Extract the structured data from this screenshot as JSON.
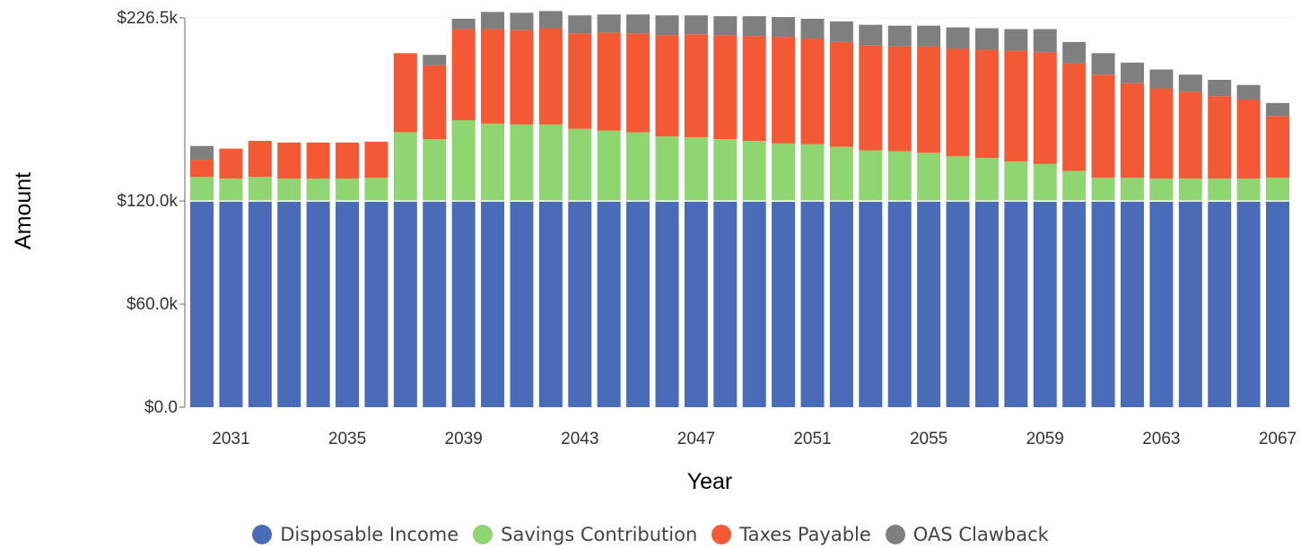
{
  "chart_data": {
    "type": "bar",
    "stacked": true,
    "xlabel": "Year",
    "ylabel": "Amount",
    "ylim": [
      0,
      226500
    ],
    "yticks": [
      0,
      60000,
      120000,
      226500
    ],
    "ytick_labels": [
      "$0.0",
      "$60.0k",
      "$120.0k",
      "$226.5k"
    ],
    "xtick_labels": [
      "2031",
      "2035",
      "2039",
      "2043",
      "2047",
      "2051",
      "2055",
      "2059",
      "2063",
      "2067"
    ],
    "categories": [
      "2030",
      "2031",
      "2032",
      "2033",
      "2034",
      "2035",
      "2036",
      "2037",
      "2038",
      "2039",
      "2040",
      "2041",
      "2042",
      "2043",
      "2044",
      "2045",
      "2046",
      "2047",
      "2048",
      "2049",
      "2050",
      "2051",
      "2052",
      "2053",
      "2054",
      "2055",
      "2056",
      "2057",
      "2058",
      "2059",
      "2060",
      "2061",
      "2062",
      "2063",
      "2064",
      "2065",
      "2066",
      "2067"
    ],
    "series": [
      {
        "name": "Disposable Income",
        "color": "#4a6bb8",
        "values": [
          120000,
          120000,
          120000,
          119500,
          120000,
          119500,
          119500,
          120000,
          120000,
          120000,
          120000,
          119500,
          120000,
          120000,
          120000,
          120000,
          119500,
          120000,
          120000,
          120000,
          119500,
          120000,
          120000,
          119500,
          120000,
          120000,
          120000,
          120000,
          120000,
          119500,
          120000,
          120000,
          120000,
          119500,
          120000,
          119500,
          120000,
          120000
        ]
      },
      {
        "name": "Savings Contribution",
        "color": "#8fd672",
        "values": [
          14000,
          13000,
          14000,
          13500,
          13000,
          13500,
          14000,
          40000,
          36000,
          47000,
          45000,
          45000,
          44500,
          42000,
          41000,
          40000,
          38000,
          37000,
          36000,
          35000,
          34000,
          33000,
          31500,
          30000,
          29000,
          28000,
          26000,
          25000,
          23000,
          22000,
          17500,
          13500,
          13500,
          13500,
          13000,
          13500,
          13000,
          13500
        ]
      },
      {
        "name": "Taxes Payable",
        "color": "#f25934",
        "values": [
          10000,
          17500,
          21000,
          21000,
          21000,
          21000,
          21000,
          46000,
          43000,
          53000,
          55000,
          55000,
          56000,
          55500,
          57000,
          57500,
          59000,
          60000,
          60500,
          61000,
          62000,
          61500,
          61000,
          61000,
          61000,
          62000,
          62500,
          63000,
          64500,
          65000,
          62500,
          60000,
          55000,
          52500,
          50500,
          48000,
          46000,
          36000
        ]
      },
      {
        "name": "OAS Clawback",
        "color": "#7f7f7f",
        "values": [
          8000,
          0,
          0,
          0,
          0,
          0,
          0,
          0,
          6000,
          6000,
          10000,
          10000,
          10000,
          10500,
          10500,
          11000,
          11500,
          11000,
          11000,
          11500,
          11500,
          11500,
          12000,
          12000,
          12000,
          12000,
          12500,
          12500,
          12500,
          13500,
          12500,
          12500,
          12000,
          11000,
          10000,
          9500,
          8500,
          7500
        ]
      }
    ]
  },
  "legend": {
    "items": [
      {
        "label": "Disposable Income",
        "color": "#4a6bb8"
      },
      {
        "label": "Savings Contribution",
        "color": "#8fd672"
      },
      {
        "label": "Taxes Payable",
        "color": "#f25934"
      },
      {
        "label": "OAS Clawback",
        "color": "#7f7f7f"
      }
    ]
  }
}
